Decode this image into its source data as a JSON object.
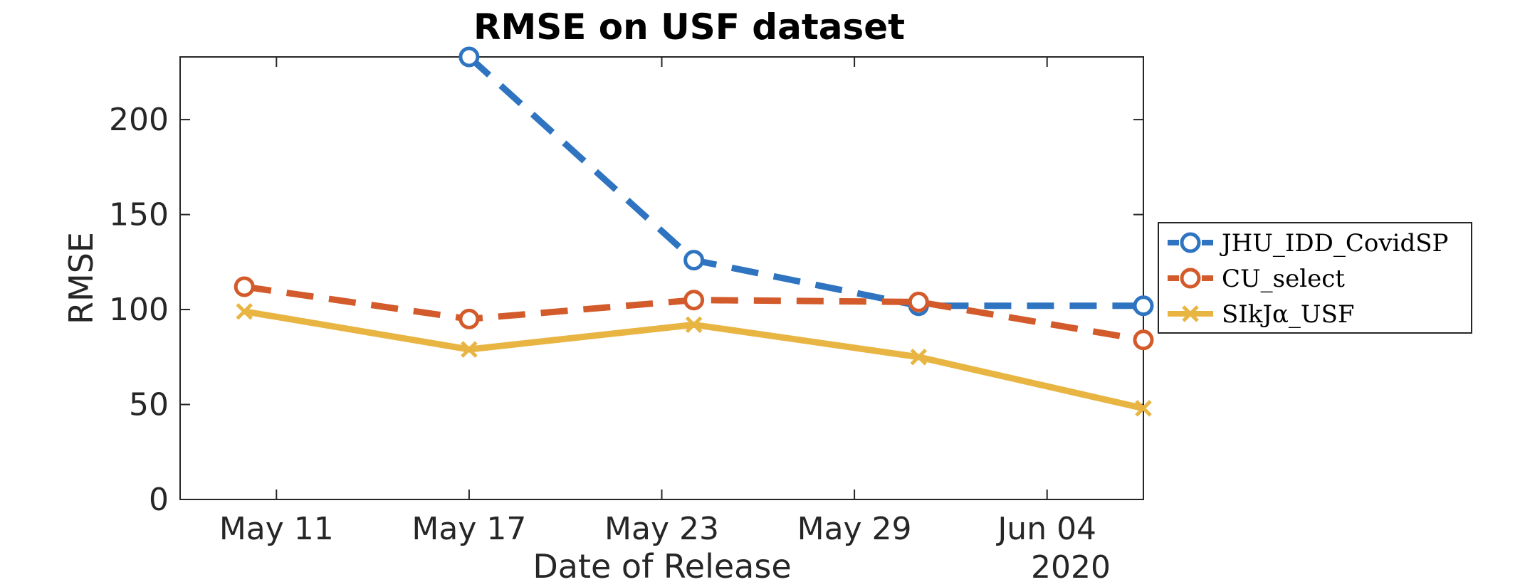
{
  "chart_data": {
    "type": "line",
    "title": "RMSE on USF dataset",
    "xlabel": "Date of Release",
    "ylabel": "RMSE",
    "x_year_label": "2020",
    "x_range": [
      "2020-05-08",
      "2020-06-07"
    ],
    "x_ticks": [
      {
        "date": "2020-05-11",
        "label": "May 11"
      },
      {
        "date": "2020-05-17",
        "label": "May 17"
      },
      {
        "date": "2020-05-23",
        "label": "May 23"
      },
      {
        "date": "2020-05-29",
        "label": "May 29"
      },
      {
        "date": "2020-06-04",
        "label": "Jun 04"
      }
    ],
    "ylim": [
      0,
      233
    ],
    "y_ticks": [
      0,
      50,
      100,
      150,
      200
    ],
    "grid": false,
    "legend_position": "outside-right",
    "series": [
      {
        "name": "JHU_IDD_CovidSP",
        "color": "#2e74c0",
        "line_style": "dashed",
        "marker": "circle",
        "points": [
          {
            "date": "2020-05-17",
            "value": 233
          },
          {
            "date": "2020-05-24",
            "value": 126
          },
          {
            "date": "2020-05-31",
            "value": 102
          },
          {
            "date": "2020-06-07",
            "value": 102
          }
        ]
      },
      {
        "name": "CU_select",
        "color": "#d35a2a",
        "line_style": "dashed",
        "marker": "circle",
        "points": [
          {
            "date": "2020-05-10",
            "value": 112
          },
          {
            "date": "2020-05-17",
            "value": 95
          },
          {
            "date": "2020-05-24",
            "value": 105
          },
          {
            "date": "2020-05-31",
            "value": 104
          },
          {
            "date": "2020-06-07",
            "value": 84
          }
        ]
      },
      {
        "name": "SIkJα_USF",
        "color": "#e8b543",
        "line_style": "solid",
        "marker": "x",
        "points": [
          {
            "date": "2020-05-10",
            "value": 99
          },
          {
            "date": "2020-05-17",
            "value": 79
          },
          {
            "date": "2020-05-24",
            "value": 92
          },
          {
            "date": "2020-05-31",
            "value": 75
          },
          {
            "date": "2020-06-07",
            "value": 48
          }
        ]
      }
    ]
  }
}
